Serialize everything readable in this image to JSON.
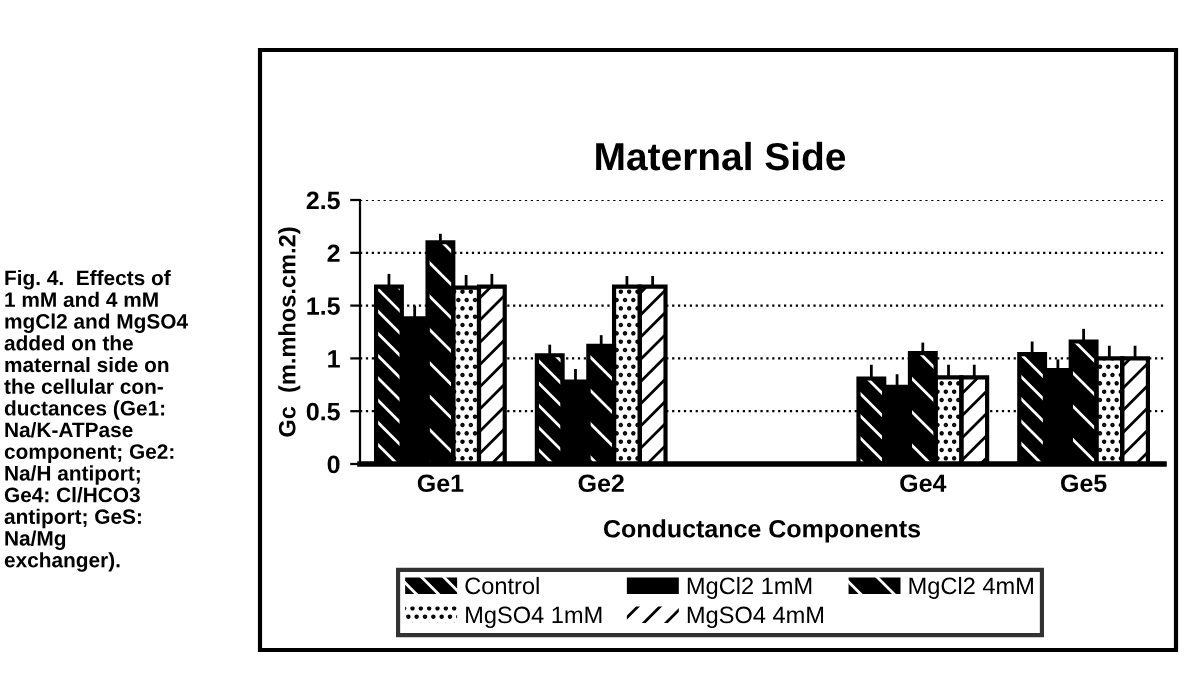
{
  "chart_data": {
    "type": "bar",
    "title": "Maternal Side",
    "xlabel": "Conductance Components",
    "ylabel": "Gc  (m.mhos.cm.2)",
    "categories": [
      "Ge1",
      "Ge2",
      null,
      "Ge4",
      "Ge5"
    ],
    "series": [
      {
        "name": "Control",
        "color": "#000000",
        "values": [
          1.68,
          1.03,
          null,
          0.81,
          1.04
        ],
        "errors": [
          0.12,
          0.1,
          null,
          0.13,
          0.12
        ]
      },
      {
        "name": "MgCl2 1mM",
        "color": "#000000",
        "values": [
          1.38,
          0.78,
          null,
          0.73,
          0.89
        ],
        "errors": [
          0.12,
          0.12,
          null,
          0.12,
          0.1
        ]
      },
      {
        "name": "MgCl2 4mM",
        "color": "#000000",
        "values": [
          2.1,
          1.12,
          null,
          1.05,
          1.16
        ],
        "errors": [
          0.08,
          0.1,
          null,
          0.1,
          0.12
        ]
      },
      {
        "name": "MgSO4 1mM",
        "color": "#000000",
        "values": [
          1.67,
          1.68,
          null,
          0.82,
          1.0
        ],
        "errors": [
          0.12,
          0.1,
          null,
          0.12,
          0.12
        ]
      },
      {
        "name": "MgSO4 4mM",
        "color": "#000000",
        "values": [
          1.68,
          1.68,
          null,
          0.82,
          1.0
        ],
        "errors": [
          0.12,
          0.1,
          null,
          0.12,
          0.12
        ]
      }
    ],
    "ylim": [
      0,
      2.5
    ],
    "yticks": [
      0,
      0.5,
      1,
      1.5,
      2,
      2.5
    ],
    "grid": "y",
    "legend": "bottom",
    "annotations": [
      "Fig. 4.  Effects of\n1 mM and 4 mM\nmgCl2 and MgSO4\nadded on the\nmaternal side on\nthe cellular con-\nductances (Ge1:\nNa/K-ATPase\ncomponent; Ge2:\nNa/H antiport;\nGe4: Cl/HCO3\nantiport; GeS:\nNa/Mg\nexchanger)."
    ]
  }
}
